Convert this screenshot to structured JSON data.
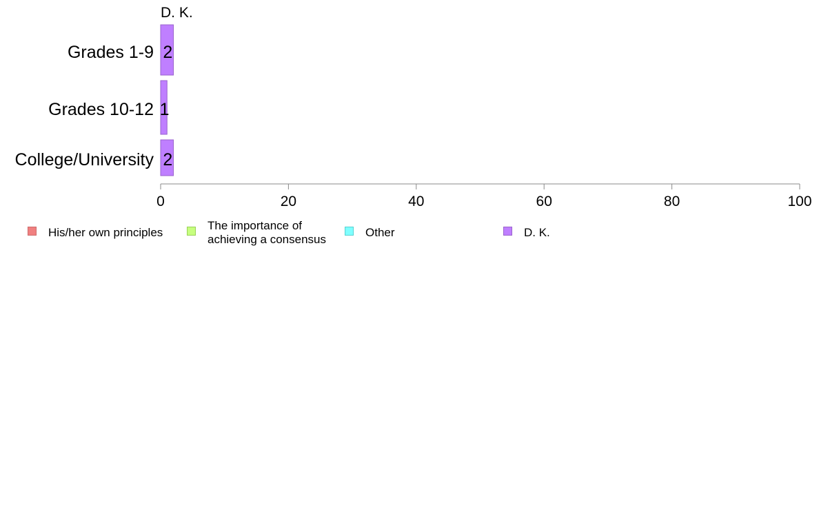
{
  "chart_data": {
    "type": "bar",
    "orientation": "horizontal",
    "stacked": true,
    "categories": [
      "Grades 1-9",
      "Grades 10-12",
      "College/University"
    ],
    "series": [
      {
        "name": "His/her own principles",
        "values": [
          0,
          0,
          0
        ],
        "color": "#f08080",
        "border": "#cc6b6b"
      },
      {
        "name": "The importance of\nachieving a consensus",
        "values": [
          0,
          0,
          0
        ],
        "color": "#c7ff7f",
        "border": "#99d157"
      },
      {
        "name": "Other",
        "values": [
          0,
          0,
          0
        ],
        "color": "#7fffff",
        "border": "#57d1d1"
      },
      {
        "name": "D. K.",
        "values": [
          2,
          1,
          2
        ],
        "color": "#bf7fff",
        "border": "#9a63cc"
      }
    ],
    "data_labels": [
      "2",
      "1",
      "2"
    ],
    "segment_header": "D. K.",
    "xlim": [
      0,
      100
    ],
    "xticks": [
      0,
      20,
      40,
      60,
      80,
      100
    ],
    "grid": false,
    "legend_position": "bottom",
    "axis_color": "#888888"
  }
}
